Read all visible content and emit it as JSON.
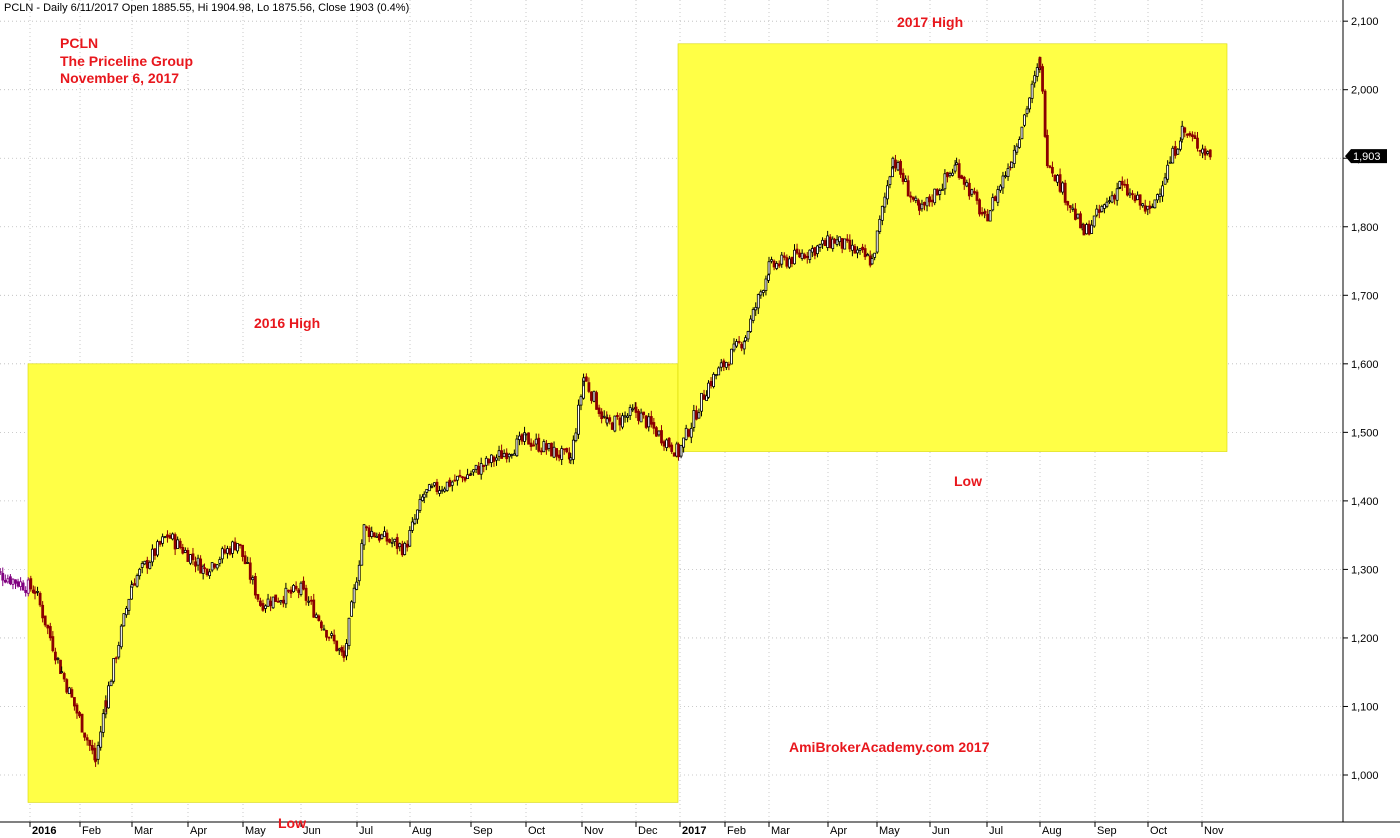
{
  "header": {
    "text": "PCLN - Daily 6/11/2017 Open 1885.55, Hi 1904.98, Lo 1875.56, Close 1903 (0.4%)"
  },
  "annotations": {
    "ticker": "PCLN",
    "company": "The Priceline Group",
    "date": "November 6, 2017",
    "high_2016": "2016 High",
    "low_2016": "Low",
    "high_2017": "2017 High",
    "low_2017": "Low",
    "watermark": "AmiBrokerAcademy.com  2017"
  },
  "colors": {
    "box_fill": "#ffff46",
    "annotation_text": "#e8171d",
    "candle_up": "#000000",
    "candle_down": "#8b0000",
    "candle_early": "#800080",
    "grid": "#bbbbbb",
    "last_price_bg": "#000000"
  },
  "last_price_label": "1,903",
  "chart_data": {
    "type": "candlestick",
    "title": "PCLN - Daily 6/11/2017 Open 1885.55, Hi 1904.98, Lo 1875.56, Close 1903 (0.4%)",
    "y_axis": {
      "position": "right",
      "ylim": [
        950,
        2090
      ],
      "ticks": [
        1000,
        1100,
        1200,
        1300,
        1400,
        1500,
        1600,
        1700,
        1800,
        1900,
        2000,
        2100
      ],
      "tick_labels": [
        "1,000",
        "1,100",
        "1,200",
        "1,300",
        "1,400",
        "1,500",
        "1,600",
        "1,700",
        "1,800",
        "1,900",
        "2,000",
        "2,100"
      ]
    },
    "x_axis": {
      "labels": [
        "2016",
        "Feb",
        "Mar",
        "Apr",
        "May",
        "Jun",
        "Jul",
        "Aug",
        "Sep",
        "Oct",
        "Nov",
        "Dec",
        "2017",
        "Feb",
        "Mar",
        "Apr",
        "May",
        "Jun",
        "Jul",
        "Aug",
        "Sep",
        "Oct",
        "Nov"
      ],
      "bold_labels": [
        "2016",
        "2017"
      ],
      "grid": true
    },
    "ranges": [
      {
        "name": "2016 High",
        "start": "2016-01",
        "end": "2016-12",
        "low": 960,
        "high": 1600
      },
      {
        "name": "2017 High",
        "start": "2017-01",
        "end": "2017-11",
        "low": 1472,
        "high": 2067
      }
    ],
    "approx_path": [
      {
        "date": "2015-12",
        "close": 1300
      },
      {
        "date": "2016-01-04",
        "close": 1270
      },
      {
        "date": "2016-01-20",
        "close": 1150
      },
      {
        "date": "2016-02-10",
        "close": 1020
      },
      {
        "date": "2016-02-16",
        "close": 1110
      },
      {
        "date": "2016-03-01",
        "close": 1280
      },
      {
        "date": "2016-03-20",
        "close": 1350
      },
      {
        "date": "2016-04-10",
        "close": 1300
      },
      {
        "date": "2016-04-28",
        "close": 1340
      },
      {
        "date": "2016-05-10",
        "close": 1250
      },
      {
        "date": "2016-06-01",
        "close": 1270
      },
      {
        "date": "2016-06-24",
        "close": 1170
      },
      {
        "date": "2016-07-05",
        "close": 1360
      },
      {
        "date": "2016-07-28",
        "close": 1330
      },
      {
        "date": "2016-08-08",
        "close": 1410
      },
      {
        "date": "2016-09-01",
        "close": 1440
      },
      {
        "date": "2016-10-01",
        "close": 1490
      },
      {
        "date": "2016-10-25",
        "close": 1460
      },
      {
        "date": "2016-11-02",
        "close": 1580
      },
      {
        "date": "2016-11-15",
        "close": 1510
      },
      {
        "date": "2016-12-01",
        "close": 1530
      },
      {
        "date": "2016-12-30",
        "close": 1470
      },
      {
        "date": "2017-01-20",
        "close": 1570
      },
      {
        "date": "2017-02-15",
        "close": 1640
      },
      {
        "date": "2017-03-01",
        "close": 1740
      },
      {
        "date": "2017-04-05",
        "close": 1780
      },
      {
        "date": "2017-04-28",
        "close": 1750
      },
      {
        "date": "2017-05-10",
        "close": 1900
      },
      {
        "date": "2017-05-25",
        "close": 1820
      },
      {
        "date": "2017-06-15",
        "close": 1890
      },
      {
        "date": "2017-06-30",
        "close": 1810
      },
      {
        "date": "2017-07-15",
        "close": 1900
      },
      {
        "date": "2017-07-31",
        "close": 2040
      },
      {
        "date": "2017-08-05",
        "close": 1900
      },
      {
        "date": "2017-08-25",
        "close": 1790
      },
      {
        "date": "2017-09-15",
        "close": 1860
      },
      {
        "date": "2017-10-02",
        "close": 1820
      },
      {
        "date": "2017-10-20",
        "close": 1940
      },
      {
        "date": "2017-11-06",
        "close": 1903
      }
    ]
  }
}
